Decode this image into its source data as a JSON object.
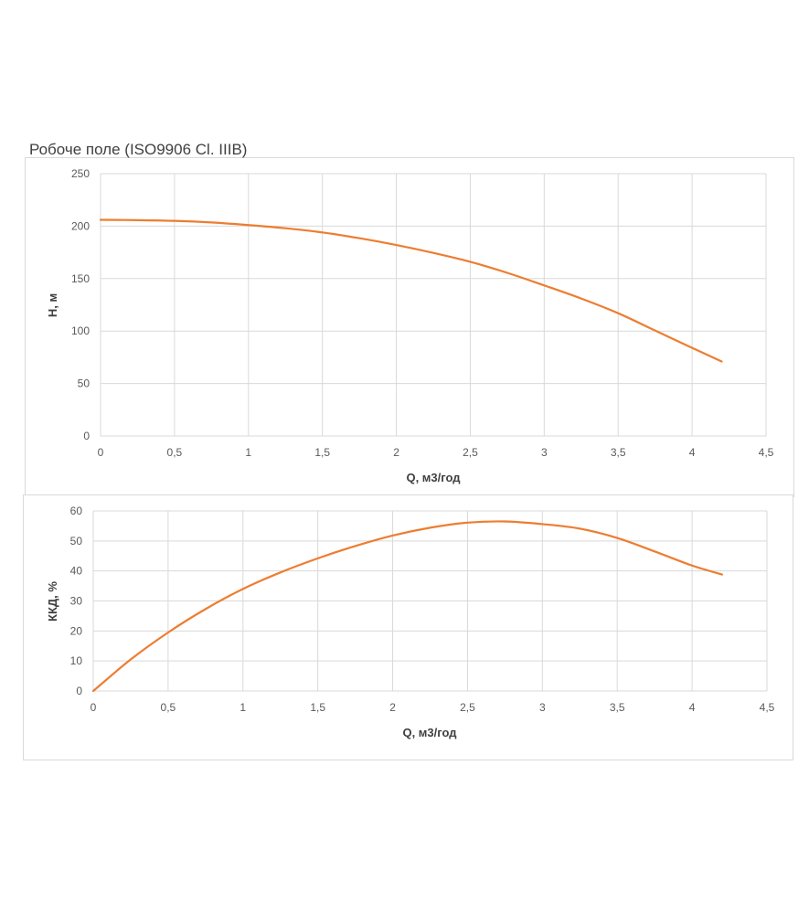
{
  "page": {
    "title": "Робоче поле (ISO9906 Cl. IIIB)"
  },
  "colors": {
    "series": "#ED7D31",
    "grid": "#d9d9d9",
    "tick_text": "#595959"
  },
  "chart_data": [
    {
      "type": "line",
      "title": "",
      "xlabel": "Q, м3/год",
      "ylabel": "H, м",
      "xlim": [
        0,
        4.5
      ],
      "ylim": [
        0,
        250
      ],
      "x_ticks": [
        "0",
        "0,5",
        "1",
        "1,5",
        "2",
        "2,5",
        "3",
        "3,5",
        "4",
        "4,5"
      ],
      "y_ticks": [
        "0",
        "50",
        "100",
        "150",
        "200",
        "250"
      ],
      "grid": true,
      "legend": "none",
      "series": [
        {
          "x": [
            0,
            0.25,
            0.5,
            0.75,
            1.0,
            1.25,
            1.5,
            1.75,
            2.0,
            2.25,
            2.5,
            2.75,
            3.0,
            3.25,
            3.5,
            3.75,
            4.0,
            4.2
          ],
          "y": [
            206,
            205.7,
            205,
            203.5,
            201,
            198,
            194,
            188.5,
            182,
            174.5,
            166,
            155.5,
            143.5,
            131,
            117,
            100.5,
            84,
            71
          ]
        }
      ]
    },
    {
      "type": "line",
      "title": "",
      "xlabel": "Q, м3/год",
      "ylabel": "ККД, %",
      "xlim": [
        0,
        4.5
      ],
      "ylim": [
        0,
        60
      ],
      "x_ticks": [
        "0",
        "0,5",
        "1",
        "1,5",
        "2",
        "2,5",
        "3",
        "3,5",
        "4",
        "4,5"
      ],
      "y_ticks": [
        "0",
        "10",
        "20",
        "30",
        "40",
        "50",
        "60"
      ],
      "grid": true,
      "legend": "none",
      "series": [
        {
          "x": [
            0,
            0.25,
            0.5,
            0.75,
            1.0,
            1.25,
            1.5,
            1.75,
            2.0,
            2.25,
            2.5,
            2.75,
            3.0,
            3.25,
            3.5,
            3.75,
            4.0,
            4.2
          ],
          "y": [
            0,
            10.5,
            19.5,
            27.3,
            34,
            39.5,
            44.2,
            48.3,
            51.8,
            54.4,
            56.1,
            56.5,
            55.6,
            54.1,
            51,
            46.5,
            41.8,
            38.8
          ]
        }
      ]
    }
  ]
}
